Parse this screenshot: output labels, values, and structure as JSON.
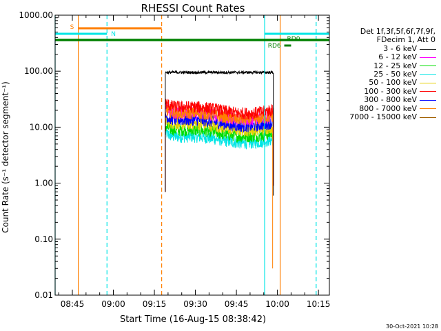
{
  "chart_data": {
    "type": "line",
    "title": "RHESSI Count Rates",
    "xlabel": "Start Time (16-Aug-15 08:38:42)",
    "ylabel": "Count Rate (s⁻¹ detector segment⁻¹)",
    "yscale": "log",
    "ylim": [
      0.01,
      1000
    ],
    "xlim": [
      "08:38:42",
      "10:19:00"
    ],
    "x_ticks": [
      "08:45",
      "09:00",
      "09:15",
      "09:30",
      "09:45",
      "10:00",
      "10:15"
    ],
    "y_ticks": [
      "0.01",
      "0.10",
      "1.00",
      "10.00",
      "100.00",
      "1000.00"
    ],
    "data_start": "09:19:00",
    "data_end": "09:58:30",
    "series": [
      {
        "name": "3 - 6 keV",
        "color": "#000000",
        "level": 95
      },
      {
        "name": "6 - 12 keV",
        "color": "#ff00ff",
        "level": 17
      },
      {
        "name": "12 - 25 keV",
        "color": "#00dd00",
        "level": 8.5
      },
      {
        "name": "25 - 50 keV",
        "color": "#00e5e5",
        "level": 6.5
      },
      {
        "name": "50 - 100 keV",
        "color": "#e5d000",
        "level": 11
      },
      {
        "name": "100 - 300 keV",
        "color": "#ff0000",
        "level": 22
      },
      {
        "name": "300 - 800 keV",
        "color": "#0000ff",
        "level": 13
      },
      {
        "name": "800 - 7000 keV",
        "color": "#ff7f00",
        "level": 17
      },
      {
        "name": "7000 - 15000 keV",
        "color": "#a06000",
        "level": 0
      }
    ],
    "legend_header": [
      "Det 1f,3f,5f,6f,7f,9f,",
      "FDecim 1, Att 0"
    ],
    "legend_position": "right",
    "annotations": {
      "saa": {
        "label": "S",
        "start": "08:47:10",
        "end": "09:17:40"
      },
      "night": [
        {
          "label": "N",
          "start": "08:38:42",
          "end": "08:57:40"
        },
        {
          "label": "",
          "start": "09:55:20",
          "end": "10:19:00"
        }
      ],
      "flag_rd6": {
        "label": "RD6",
        "start": "08:38:42",
        "end": "10:19:00"
      },
      "flag_rd0": {
        "label": "RD0",
        "start": "10:02:30",
        "end": "10:05:00"
      },
      "lines_cyan": [
        "08:38:42",
        "09:55:20"
      ],
      "lines_cyan_dashed": [
        "08:57:40",
        "10:14:10"
      ],
      "lines_orange": [
        "08:47:10",
        "10:01:00"
      ],
      "lines_orange_dashed": [
        "09:17:40"
      ]
    },
    "grid": false
  },
  "footer": {
    "date": "30-Oct-2021 10:28"
  }
}
